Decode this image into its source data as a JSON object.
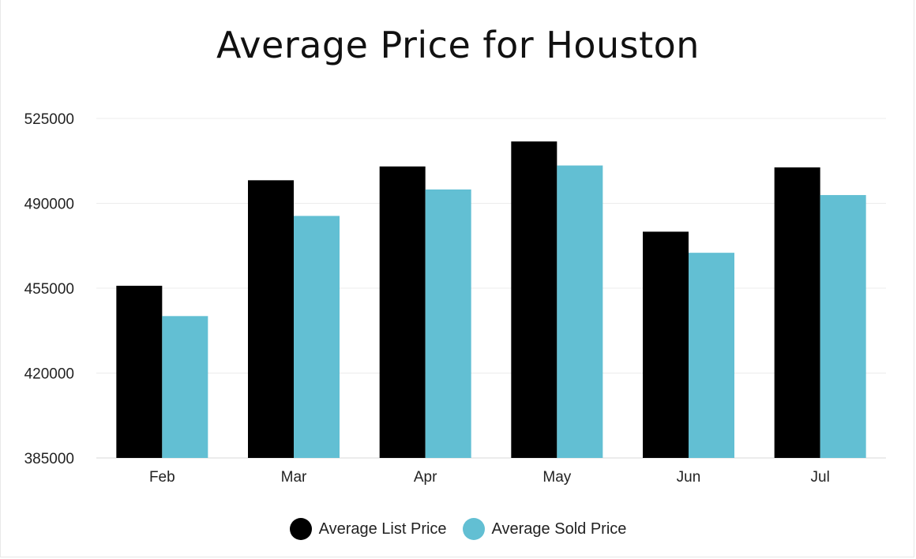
{
  "chart_data": {
    "type": "bar",
    "title": "Average Price for Houston",
    "xlabel": "",
    "ylabel": "",
    "categories": [
      "Feb",
      "Mar",
      "Apr",
      "May",
      "Jun",
      "Jul"
    ],
    "series": [
      {
        "name": "Average List Price",
        "color": "#000000",
        "values": [
          456000,
          499500,
          505200,
          515500,
          478300,
          504800
        ]
      },
      {
        "name": "Average Sold Price",
        "color": "#62bfd3",
        "values": [
          443500,
          484800,
          495700,
          505600,
          469600,
          493400
        ]
      }
    ],
    "ylim": [
      385000,
      525000
    ],
    "yticks": [
      385000,
      420000,
      455000,
      490000,
      525000
    ],
    "ytick_labels": [
      "385000",
      "420000",
      "455000",
      "490000",
      "525000"
    ],
    "grid": true,
    "legend_position": "bottom-center"
  }
}
